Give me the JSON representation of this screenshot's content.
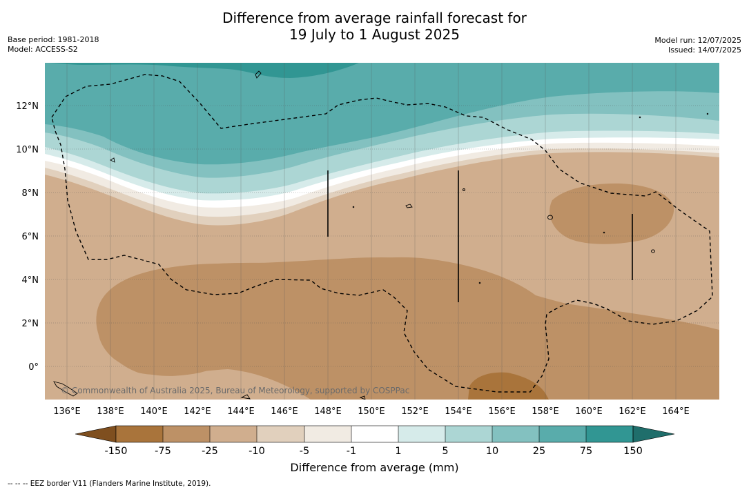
{
  "title": {
    "line1": "Difference from average rainfall forecast for",
    "line2": "19 July to 1 August 2025"
  },
  "meta": {
    "base_period": "Base period: 1981-2018",
    "model": "Model: ACCESS-S2",
    "model_run": "Model run: 12/07/2025",
    "issued": "Issued: 14/07/2025"
  },
  "map": {
    "lon_ticks": [
      "136°E",
      "138°E",
      "140°E",
      "142°E",
      "144°E",
      "146°E",
      "148°E",
      "150°E",
      "152°E",
      "154°E",
      "156°E",
      "158°E",
      "160°E",
      "162°E",
      "164°E"
    ],
    "lat_ticks": [
      "12°N",
      "10°N",
      "8°N",
      "6°N",
      "4°N",
      "2°N",
      "0°"
    ],
    "copyright": "© Commonwealth of Australia 2025, Bureau of Meteorology, supported by COSPPac"
  },
  "colorbar": {
    "labels": [
      "-150",
      "-75",
      "-25",
      "-10",
      "-5",
      "-1",
      "1",
      "5",
      "10",
      "25",
      "75",
      "150"
    ],
    "colors": [
      "#7f4f1f",
      "#a9743b",
      "#bd9166",
      "#d0ae8e",
      "#e1d0bd",
      "#f1ebe3",
      "#ffffff",
      "#d6ebea",
      "#acd6d4",
      "#83c1c0",
      "#59acab",
      "#319693",
      "#1f6e6b"
    ],
    "title": "Difference from average (mm)"
  },
  "footnote": "--  --  -- EEZ border V11 (Flanders Marine Institute, 2019)."
}
